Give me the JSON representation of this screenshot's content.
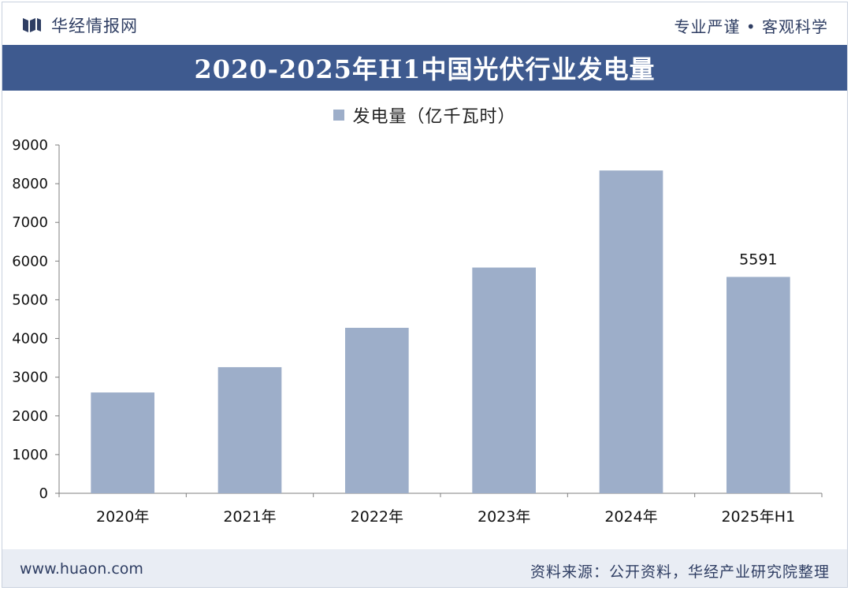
{
  "header": {
    "brand_name": "华经情报网",
    "slogan": "专业严谨 • 客观科学"
  },
  "chart_title": "2020-2025年H1中国光伏行业发电量",
  "legend_label": "发电量（亿千瓦时）",
  "footer": {
    "url": "www.huaon.com",
    "source": "资料来源：公开资料，华经产业研究院整理"
  },
  "colors": {
    "banner": "#3e5a8f",
    "bar": "#9daec9",
    "text_dark": "#2f3e63"
  },
  "chart_data": {
    "type": "bar",
    "categories": [
      "2020年",
      "2021年",
      "2022年",
      "2023年",
      "2024年",
      "2025年H1"
    ],
    "series": [
      {
        "name": "发电量（亿千瓦时）",
        "values": [
          2605,
          3259,
          4276,
          5833,
          8341,
          5591
        ]
      }
    ],
    "data_labels": [
      null,
      null,
      null,
      null,
      null,
      "5591"
    ],
    "ylim": [
      0,
      9000
    ],
    "yticks": [
      0,
      1000,
      2000,
      3000,
      4000,
      5000,
      6000,
      7000,
      8000,
      9000
    ],
    "grid": false,
    "legend_position": "top-center"
  }
}
